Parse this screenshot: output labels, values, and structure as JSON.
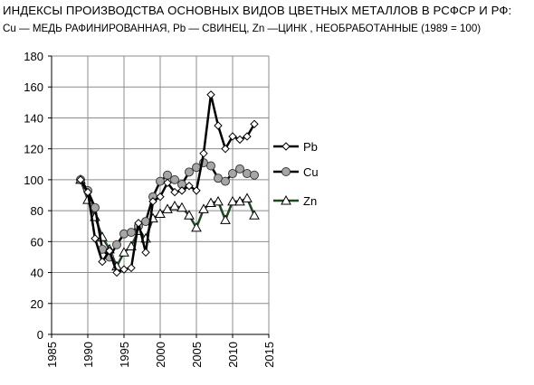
{
  "chart_data": {
    "type": "line",
    "title": "ИНДЕКСЫ ПРОИЗВОДСТВА ОСНОВНЫХ ВИДОВ ЦВЕТНЫХ МЕТАЛЛОВ В  РСФСР  И  РФ:",
    "subtitle": "Cu — МЕДЬ РАФИНИРОВАННАЯ,  Pb — СВИНЕЦ, Zn —ЦИНК , НЕОБРАБОТАННЫЕ (1989 = 100)",
    "xlabel": "",
    "ylabel": "",
    "xlim": [
      1985,
      2015
    ],
    "ylim": [
      0,
      180
    ],
    "x_ticks": [
      1985,
      1990,
      1995,
      2000,
      2005,
      2010,
      2015
    ],
    "y_ticks": [
      0,
      20,
      40,
      60,
      80,
      100,
      120,
      140,
      160,
      180
    ],
    "grid": true,
    "legend_position": "right",
    "series": [
      {
        "name": "Pb",
        "marker": "diamond",
        "marker_fill": "#ffffff",
        "line_color": "#000000",
        "x": [
          1989,
          1990,
          1991,
          1992,
          1993,
          1994,
          1995,
          1996,
          1997,
          1998,
          1999,
          2000,
          2001,
          2002,
          2003,
          2004,
          2005,
          2006,
          2007,
          2008,
          2009,
          2010,
          2011,
          2012,
          2013
        ],
        "y": [
          100,
          92,
          62,
          47,
          54,
          40,
          42,
          43,
          72,
          53,
          86,
          89,
          98,
          92,
          93,
          96,
          93,
          117,
          155,
          135,
          120,
          128,
          126,
          128,
          136
        ]
      },
      {
        "name": "Cu",
        "marker": "circle",
        "marker_fill": "#a6a6a6",
        "line_color": "#000000",
        "x": [
          1989,
          1990,
          1991,
          1992,
          1993,
          1994,
          1995,
          1996,
          1997,
          1998,
          1999,
          2000,
          2001,
          2002,
          2003,
          2004,
          2005,
          2006,
          2007,
          2008,
          2009,
          2010,
          2011,
          2012,
          2013
        ],
        "y": [
          100,
          93,
          82,
          55,
          50,
          58,
          65,
          66,
          70,
          73,
          89,
          99,
          103,
          100,
          97,
          105,
          108,
          111,
          109,
          101,
          99,
          104,
          107,
          104,
          103
        ]
      },
      {
        "name": "Zn",
        "marker": "triangle",
        "marker_fill": "#ffffff",
        "line_color": "#1e4620",
        "x": [
          1989,
          1990,
          1991,
          1992,
          1993,
          1994,
          1995,
          1996,
          1997,
          1998,
          1999,
          2000,
          2001,
          2002,
          2003,
          2004,
          2005,
          2006,
          2007,
          2008,
          2009,
          2010,
          2011,
          2012,
          2013
        ],
        "y": [
          100,
          87,
          76,
          63,
          55,
          44,
          53,
          57,
          67,
          62,
          75,
          78,
          81,
          83,
          82,
          77,
          69,
          81,
          85,
          86,
          74,
          86,
          86,
          88,
          77
        ]
      }
    ]
  }
}
